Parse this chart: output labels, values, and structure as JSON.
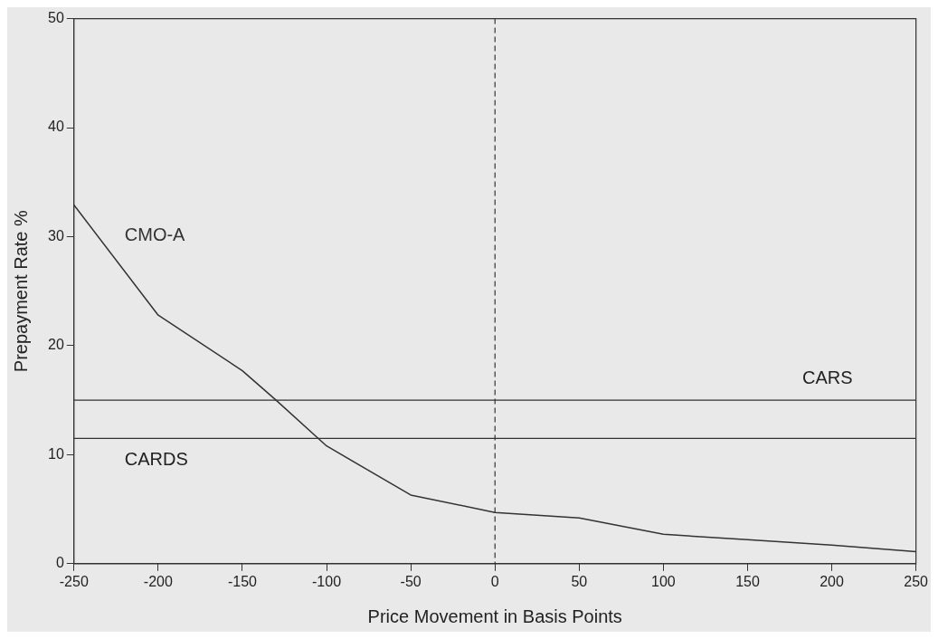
{
  "chart_data": {
    "type": "line",
    "xlabel": "Price Movement in Basis Points",
    "ylabel": "Prepayment Rate %",
    "x": [
      -250,
      -200,
      -150,
      -130,
      -100,
      -50,
      0,
      50,
      100,
      150,
      200,
      250
    ],
    "series": [
      {
        "name": "CMO-A",
        "color": "#333333",
        "values": [
          32.9,
          22.8,
          17.7,
          15.0,
          10.8,
          6.3,
          4.7,
          4.2,
          2.7,
          2.2,
          1.7,
          1.1
        ]
      }
    ],
    "xlim": [
      -250,
      250
    ],
    "xticks": [
      -250,
      -200,
      -150,
      -100,
      -50,
      0,
      50,
      100,
      150,
      200,
      250
    ],
    "ylim": [
      0,
      50
    ],
    "yticks": [
      0,
      10,
      20,
      30,
      40,
      50
    ],
    "ref_lines": [
      {
        "axis": "y",
        "value": 15,
        "label": "CARS",
        "color": "#333333",
        "line_style": "solid"
      },
      {
        "axis": "y",
        "value": 11.5,
        "label": "CARDS",
        "color": "#333333",
        "line_style": "solid"
      },
      {
        "axis": "x",
        "value": 0,
        "color": "#333333",
        "line_style": "dashed"
      }
    ],
    "grid": false,
    "legend": false,
    "marker": "none",
    "line_style": "solid"
  }
}
